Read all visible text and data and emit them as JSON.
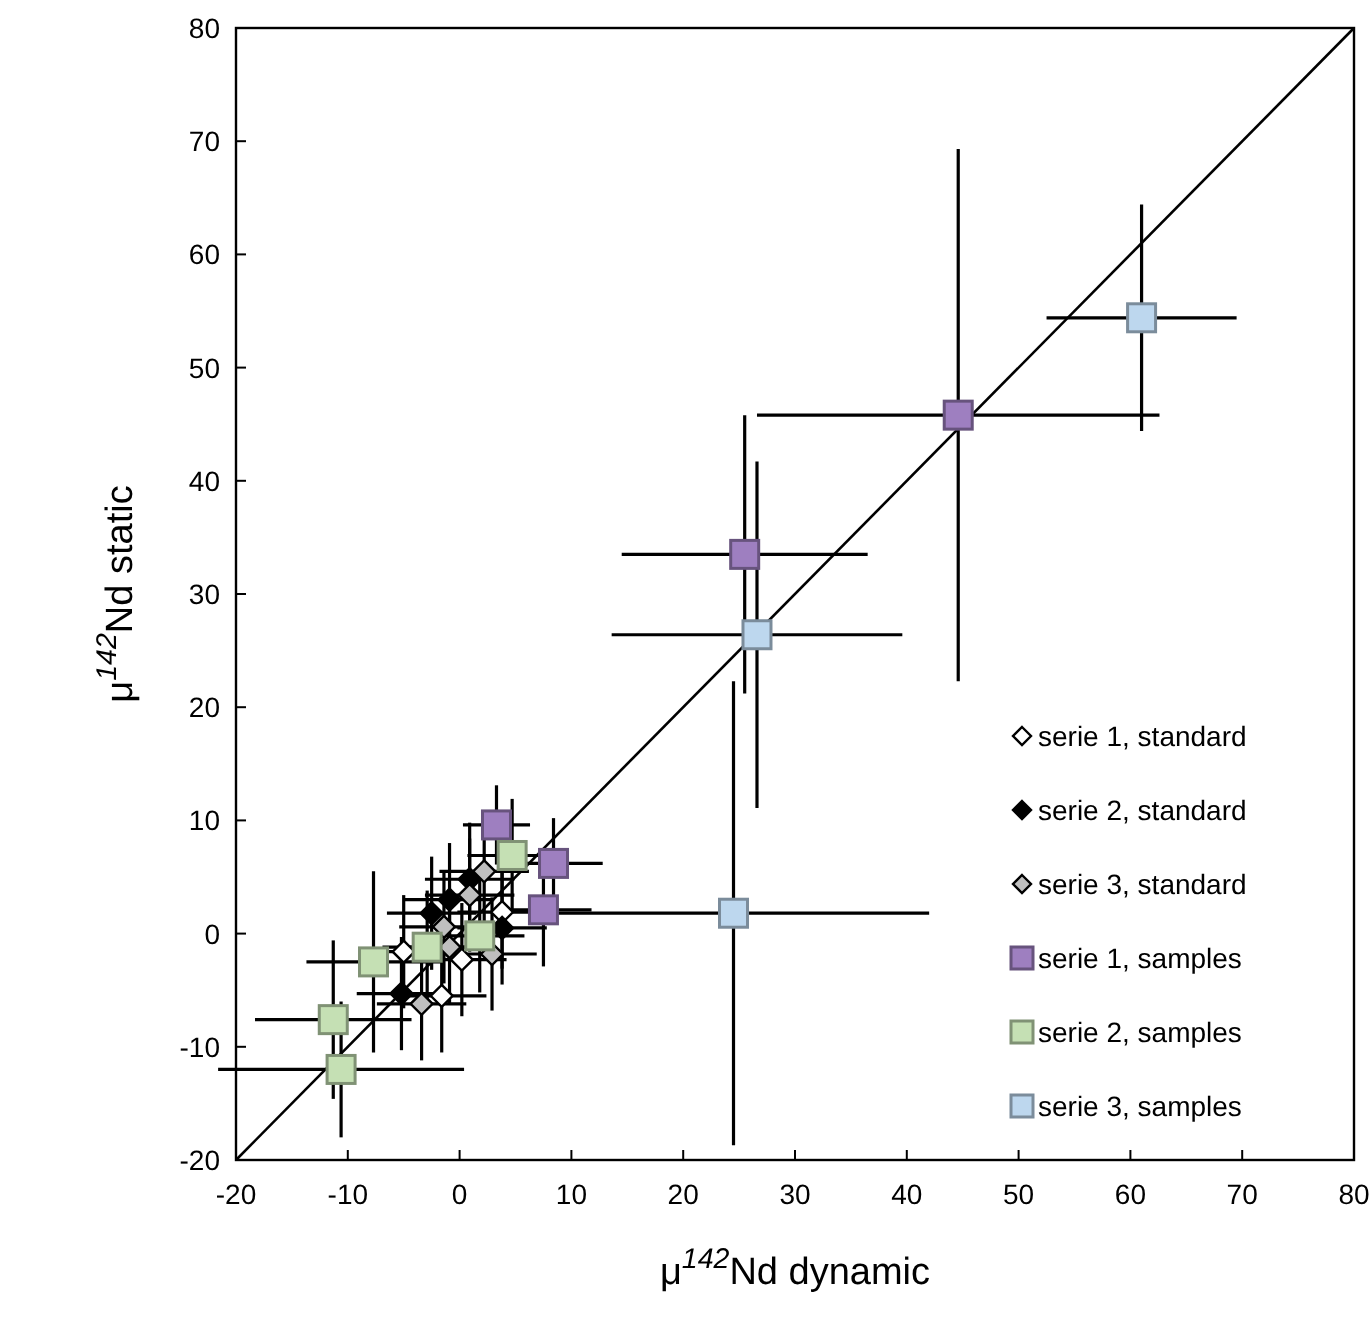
{
  "chart_data": {
    "type": "scatter",
    "xlabel": "μ$^{142}$Nd dynamic",
    "ylabel": "μ$^{142}$Nd static",
    "xlim": [
      -20,
      80
    ],
    "ylim": [
      -20,
      80
    ],
    "xticks": [
      -20,
      -10,
      0,
      10,
      20,
      30,
      40,
      50,
      60,
      70,
      80
    ],
    "yticks": [
      -20,
      -10,
      0,
      10,
      20,
      30,
      40,
      50,
      60,
      70,
      80
    ],
    "grid": false,
    "legend": "bottom right",
    "series": [
      {
        "type": "line",
        "color": "#000000",
        "x": [
          -20,
          80
        ],
        "values": [
          -20,
          80
        ]
      },
      {
        "name": "serie 1, standard",
        "color": "#ffffff",
        "marker": "diamond",
        "x": [
          -5.0,
          0.2,
          -1.6,
          3.8
        ],
        "values": [
          -1.6,
          -2.3,
          -5.5,
          1.9
        ],
        "xerrors": [
          4,
          4,
          4,
          4
        ],
        "errors": [
          5,
          5,
          5,
          5
        ]
      },
      {
        "name": "serie 2, standard",
        "color": "#000000",
        "marker": "diamond",
        "x": [
          -5.2,
          -2.5,
          0.9,
          3.8,
          -0.9
        ],
        "values": [
          -5.3,
          1.8,
          4.8,
          0.5,
          3
        ],
        "xerrors": [
          4,
          4,
          4,
          4,
          4
        ],
        "errors": [
          5,
          5,
          5,
          5,
          5
        ]
      },
      {
        "name": "serie 3, standard",
        "color": "#bfbfbf",
        "marker": "diamond",
        "x": [
          2.2,
          0.9,
          -1.4,
          -0.9,
          2.9,
          -3.4
        ],
        "values": [
          5.5,
          3.4,
          0.6,
          -1.2,
          -1.8,
          -6.2
        ],
        "xerrors": [
          4,
          4,
          4,
          4,
          4,
          4
        ],
        "errors": [
          5,
          5,
          5,
          5,
          5,
          5
        ]
      },
      {
        "name": "serie 1, samples",
        "color": "#9e7fc0",
        "marker": "square",
        "x": [
          25.5,
          44.6,
          3.3,
          8.4,
          7.5
        ],
        "values": [
          33.5,
          45.8,
          9.6,
          6.2,
          2.1
        ],
        "xerrors": [
          11,
          18,
          3,
          4.4,
          4.3
        ],
        "errors": [
          12.3,
          23.5,
          3.5,
          4,
          5
        ]
      },
      {
        "name": "serie 2, samples",
        "color": "#c5e0b4",
        "marker": "square",
        "x": [
          4.7,
          1.8,
          -2.9,
          -7.7,
          -11.3,
          -10.6
        ],
        "values": [
          6.9,
          -0.2,
          -1.2,
          -2.5,
          -7.6,
          -12
        ],
        "xerrors": [
          4,
          4,
          4,
          6,
          7,
          11
        ],
        "errors": [
          5,
          5,
          5,
          8,
          7,
          6
        ]
      },
      {
        "name": "serie 3, samples",
        "color": "#bdd7ee",
        "marker": "square",
        "x": [
          61,
          26.6,
          24.5
        ],
        "values": [
          54.4,
          26.4,
          1.8
        ],
        "xerrors": [
          8.5,
          13,
          17.5
        ],
        "errors": [
          10,
          15.3,
          20.5
        ]
      }
    ]
  }
}
